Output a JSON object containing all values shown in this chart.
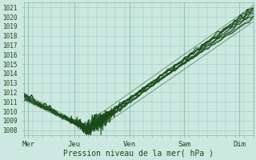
{
  "xlabel": "Pression niveau de la mer( hPa )",
  "ylim": [
    1007.5,
    1021.5
  ],
  "xlim": [
    0,
    100
  ],
  "yticks": [
    1008,
    1009,
    1010,
    1011,
    1012,
    1013,
    1014,
    1015,
    1016,
    1017,
    1018,
    1019,
    1020,
    1021
  ],
  "xtick_positions": [
    2,
    22,
    46,
    70,
    94
  ],
  "xtick_labels": [
    "Mer",
    "Jeu",
    "Ven",
    "Sam",
    "Dim"
  ],
  "bg_color": "#cce8e0",
  "plot_bg_color": "#cce8e0",
  "grid_color": "#99ccbb",
  "line_color": "#1a4a1a",
  "vline_color": "#88bbaa"
}
